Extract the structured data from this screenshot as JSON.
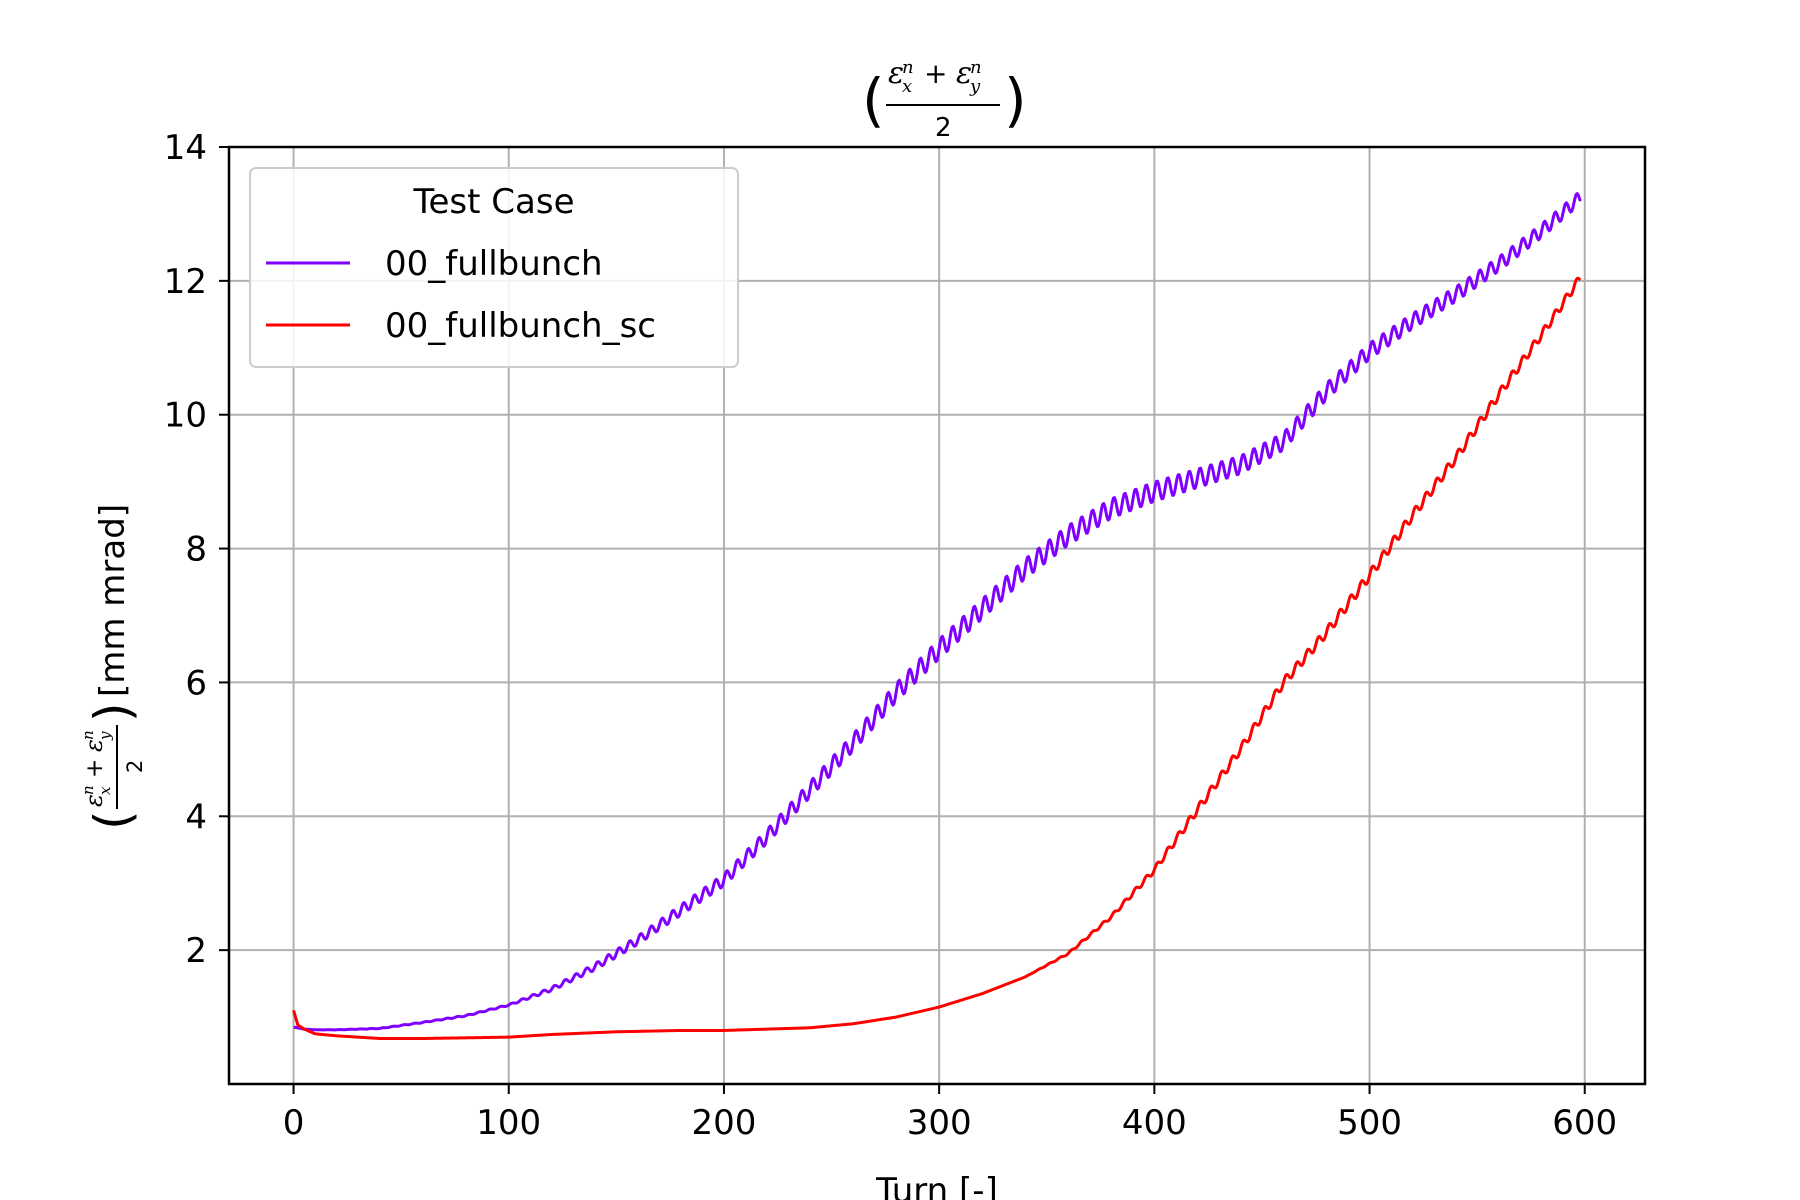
{
  "chart_data": {
    "type": "line",
    "title": "(εₓⁿ + εᵧⁿ) / 2",
    "xlabel": "Turn [-]",
    "ylabel": "(εₓⁿ + εᵧⁿ) / 2 [mm mrad]",
    "ylabel_unit": "[mm mrad]",
    "xlim": [
      -30,
      628
    ],
    "ylim": [
      0,
      14
    ],
    "xticks": [
      0,
      100,
      200,
      300,
      400,
      500,
      600
    ],
    "xtick_labels": [
      "0",
      "100",
      "200",
      "300",
      "400",
      "500",
      "600"
    ],
    "yticks": [
      2,
      4,
      6,
      8,
      10,
      12,
      14
    ],
    "ytick_labels": [
      "2",
      "4",
      "6",
      "8",
      "10",
      "12",
      "14"
    ],
    "grid": true,
    "legend": {
      "title": "Test Case",
      "placement": "upper-left"
    },
    "series": [
      {
        "name": "00_fullbunch",
        "color": "#7f00ff",
        "oscillation_amplitude": [
          [
            0,
            0
          ],
          [
            100,
            0.02
          ],
          [
            150,
            0.12
          ],
          [
            250,
            0.25
          ],
          [
            300,
            0.3
          ],
          [
            400,
            0.3
          ],
          [
            480,
            0.25
          ],
          [
            600,
            0.2
          ]
        ],
        "oscillation_period": 5,
        "x": [
          0,
          5,
          10,
          20,
          40,
          60,
          80,
          100,
          120,
          140,
          160,
          180,
          200,
          220,
          240,
          260,
          280,
          300,
          320,
          340,
          360,
          380,
          400,
          420,
          440,
          460,
          480,
          500,
          520,
          540,
          560,
          580,
          598
        ],
        "y": [
          0.85,
          0.82,
          0.81,
          0.81,
          0.83,
          0.92,
          1.02,
          1.18,
          1.42,
          1.75,
          2.15,
          2.6,
          3.05,
          3.7,
          4.4,
          5.1,
          5.85,
          6.5,
          7.1,
          7.7,
          8.2,
          8.6,
          8.85,
          9.05,
          9.25,
          9.6,
          10.35,
          10.95,
          11.4,
          11.8,
          12.25,
          12.75,
          13.25
        ]
      },
      {
        "name": "00_fullbunch_sc",
        "color": "#ff0000",
        "oscillation_amplitude": [
          [
            0,
            0
          ],
          [
            340,
            0
          ],
          [
            380,
            0.05
          ],
          [
            420,
            0.12
          ],
          [
            500,
            0.15
          ],
          [
            600,
            0.12
          ]
        ],
        "oscillation_period": 5,
        "x": [
          0,
          2,
          5,
          10,
          20,
          40,
          60,
          80,
          100,
          120,
          150,
          180,
          200,
          220,
          240,
          260,
          280,
          300,
          320,
          340,
          360,
          380,
          400,
          420,
          440,
          460,
          480,
          500,
          520,
          540,
          560,
          580,
          598
        ],
        "y": [
          1.1,
          0.88,
          0.82,
          0.75,
          0.72,
          0.68,
          0.68,
          0.69,
          0.7,
          0.74,
          0.78,
          0.8,
          0.8,
          0.82,
          0.84,
          0.9,
          1.0,
          1.15,
          1.35,
          1.6,
          1.95,
          2.5,
          3.2,
          4.1,
          5.0,
          6.0,
          6.75,
          7.6,
          8.5,
          9.35,
          10.3,
          11.2,
          12.05
        ]
      }
    ]
  }
}
